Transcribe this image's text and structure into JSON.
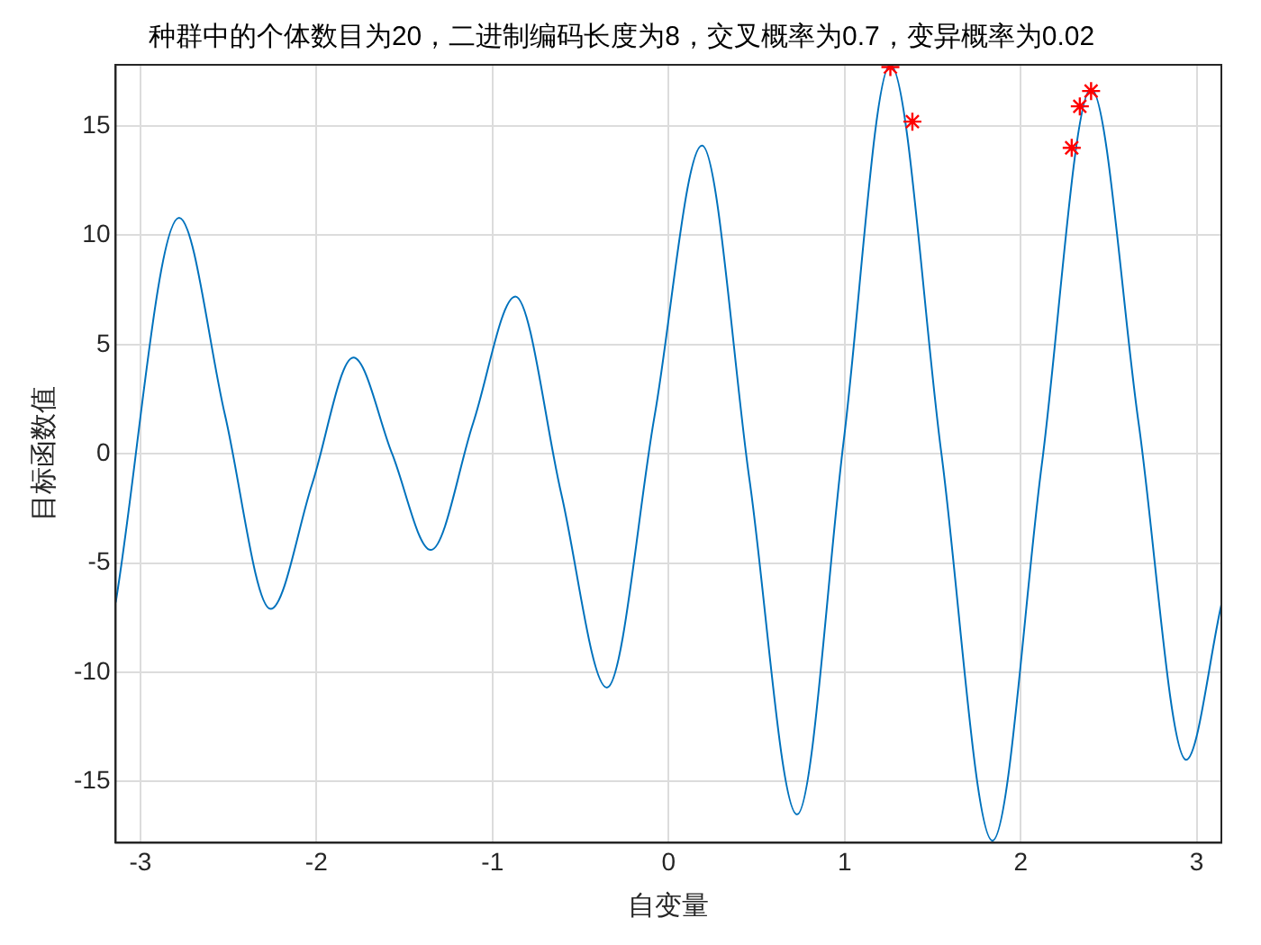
{
  "chart_data": {
    "type": "line",
    "title": "种群中的个体数目为20，二进制编码长度为8，交叉概率为0.7，变异概率为0.02",
    "xlabel": "自变量",
    "ylabel": "目标函数值",
    "xlim": [
      -3.14,
      3.14
    ],
    "ylim": [
      -17.8,
      17.8
    ],
    "xticks": [
      -3,
      -2,
      -1,
      0,
      1,
      2,
      3
    ],
    "yticks": [
      -15,
      -10,
      -5,
      0,
      5,
      10,
      15
    ],
    "grid": true,
    "legend": false,
    "series": [
      {
        "color": "#0072bd",
        "marker": "none",
        "line_style": "solid",
        "x": [
          -3.14,
          -2.78,
          -2.52,
          -2.26,
          -2.025,
          -1.79,
          -1.57,
          -1.35,
          -1.11,
          -0.87,
          -0.61,
          -0.35,
          -0.08,
          0.19,
          0.46,
          0.73,
          0.995,
          1.26,
          1.55,
          1.84,
          2.12,
          2.4,
          2.67,
          2.94,
          3.14
        ],
        "values": [
          -6.8,
          10.8,
          1.8,
          -7.1,
          -1.4,
          4.4,
          0,
          -4.4,
          1.4,
          7.2,
          -1.8,
          -10.7,
          1.7,
          14.1,
          -1.2,
          -16.5,
          0.6,
          17.8,
          0,
          -17.7,
          -0.5,
          16.7,
          1.4,
          -14,
          -6.9
        ]
      },
      {
        "type": "scatter",
        "color": "#ff0000",
        "marker": "cross",
        "x": [
          1.26,
          1.385,
          2.29,
          2.336,
          2.4
        ],
        "values": [
          17.7,
          15.2,
          14,
          15.9,
          16.6
        ]
      }
    ]
  }
}
